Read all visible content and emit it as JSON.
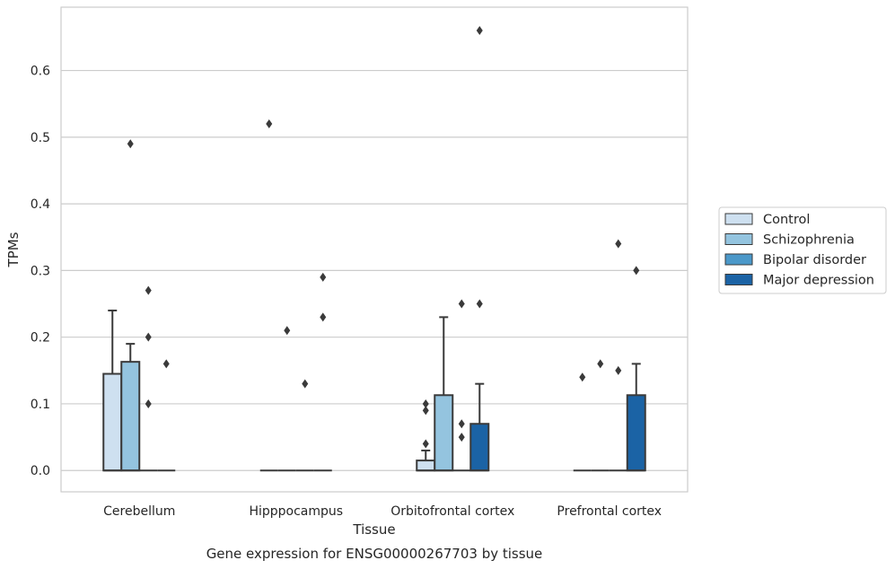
{
  "chart_data": {
    "type": "boxplot",
    "caption": "Gene expression for ENSG00000267703 by tissue",
    "xlabel": "Tissue",
    "ylabel": "TPMs",
    "ylim": [
      -0.032,
      0.695
    ],
    "yticks": [
      0.0,
      0.1,
      0.2,
      0.3,
      0.4,
      0.5,
      0.6
    ],
    "ytick_labels": [
      "0.0",
      "0.1",
      "0.2",
      "0.3",
      "0.4",
      "0.5",
      "0.6"
    ],
    "grid": "horizontal",
    "legend_position": "right",
    "categories": [
      "Cerebellum",
      "Hipppocampus",
      "Orbitofrontal cortex",
      "Prefrontal cortex"
    ],
    "series": [
      {
        "name": "Control",
        "color": "#cee0f0",
        "boxes": [
          {
            "q1": 0.0,
            "median": 0.0,
            "q3": 0.145,
            "whislo": 0.0,
            "whishi": 0.24,
            "fliers": []
          },
          {
            "q1": 0.0,
            "median": 0.0,
            "q3": 0.0,
            "whislo": 0.0,
            "whishi": 0.0,
            "fliers": [
              0.52
            ]
          },
          {
            "q1": 0.0,
            "median": 0.0,
            "q3": 0.015,
            "whislo": 0.0,
            "whishi": 0.03,
            "fliers": [
              0.04,
              0.09,
              0.1
            ]
          },
          {
            "q1": 0.0,
            "median": 0.0,
            "q3": 0.0,
            "whislo": 0.0,
            "whishi": 0.0,
            "fliers": [
              0.14
            ]
          }
        ]
      },
      {
        "name": "Schizophrenia",
        "color": "#94c4df",
        "boxes": [
          {
            "q1": 0.0,
            "median": 0.0,
            "q3": 0.163,
            "whislo": 0.0,
            "whishi": 0.19,
            "fliers": [
              0.49
            ]
          },
          {
            "q1": 0.0,
            "median": 0.0,
            "q3": 0.0,
            "whislo": 0.0,
            "whishi": 0.0,
            "fliers": [
              0.21
            ]
          },
          {
            "q1": 0.0,
            "median": 0.0,
            "q3": 0.113,
            "whislo": 0.0,
            "whishi": 0.23,
            "fliers": []
          },
          {
            "q1": 0.0,
            "median": 0.0,
            "q3": 0.0,
            "whislo": 0.0,
            "whishi": 0.0,
            "fliers": [
              0.16
            ]
          }
        ]
      },
      {
        "name": "Bipolar disorder",
        "color": "#4b98c9",
        "boxes": [
          {
            "q1": 0.0,
            "median": 0.0,
            "q3": 0.0,
            "whislo": 0.0,
            "whishi": 0.0,
            "fliers": [
              0.1,
              0.2,
              0.27
            ]
          },
          {
            "q1": 0.0,
            "median": 0.0,
            "q3": 0.0,
            "whislo": 0.0,
            "whishi": 0.0,
            "fliers": [
              0.13
            ]
          },
          {
            "q1": 0.0,
            "median": 0.0,
            "q3": 0.0,
            "whislo": 0.0,
            "whishi": 0.0,
            "fliers": [
              0.05,
              0.07,
              0.25
            ]
          },
          {
            "q1": 0.0,
            "median": 0.0,
            "q3": 0.0,
            "whislo": 0.0,
            "whishi": 0.0,
            "fliers": [
              0.15,
              0.34
            ]
          }
        ]
      },
      {
        "name": "Major depression",
        "color": "#1b63a5",
        "boxes": [
          {
            "q1": 0.0,
            "median": 0.0,
            "q3": 0.0,
            "whislo": 0.0,
            "whishi": 0.0,
            "fliers": [
              0.16
            ]
          },
          {
            "q1": 0.0,
            "median": 0.0,
            "q3": 0.0,
            "whislo": 0.0,
            "whishi": 0.0,
            "fliers": [
              0.23,
              0.29
            ]
          },
          {
            "q1": 0.0,
            "median": 0.0,
            "q3": 0.07,
            "whislo": 0.0,
            "whishi": 0.13,
            "fliers": [
              0.25,
              0.66
            ]
          },
          {
            "q1": 0.0,
            "median": 0.0,
            "q3": 0.113,
            "whislo": 0.0,
            "whishi": 0.16,
            "fliers": [
              0.3
            ]
          }
        ]
      }
    ]
  }
}
